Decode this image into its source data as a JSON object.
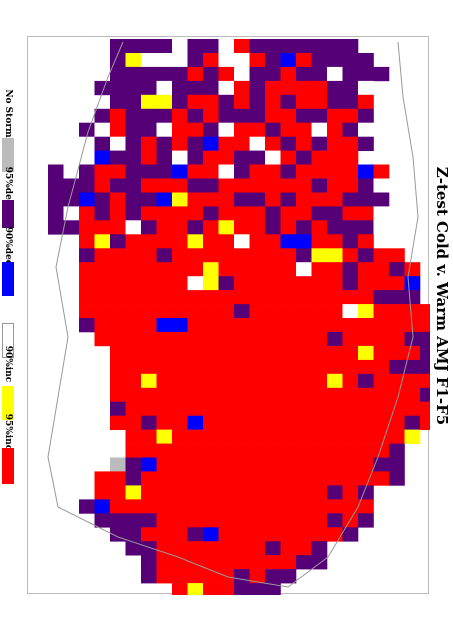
{
  "title": "Z-test Cold v. Warm AMJ F1-F5",
  "legend": {
    "items": [
      {
        "label": "No Storms",
        "color": "#bbbbbb"
      },
      {
        "label": "95%dec",
        "color": "#550077"
      },
      {
        "label": "90%dec",
        "color": "#0000ff"
      },
      {
        "label": "",
        "color": "#ffffff"
      },
      {
        "label": "90%inc",
        "color": "#ffff00"
      },
      {
        "label": "95%inc",
        "color": "#ff0000"
      }
    ]
  },
  "colors": {
    "P": "#550077",
    "R": "#ff0000",
    "B": "#0000ff",
    "Y": "#ffff00",
    "G": "#bbbbbb",
    "W": "#ffffff",
    "outline": "#999999",
    "grid": "#cccccc"
  },
  "map_grid": {
    "rows": [
      "....PPPPWPPWRPPPPPPP",
      "....PYWWWPRWWRPBRPPPP",
      "....PPPPPRPRWPPRPPWPPP",
      "...PPPPWPPPWRPRRRRPPW",
      "....PPYYPRRPRPRPRRPPR",
      "...PRPPPRPRPPPRRPPRRP",
      "..PWRPPWRRPWRRPRRWRPW",
      "..WPWPRPRPBRRWRPRPRRP",
      "..WBPPRPWPRRPPWRPRRR",
      "PWPRRPPPBRRWPRRPRRRRBR",
      "PPPRPPRRRPPRRRRRRPRRPW",
      "PPBPRPPBYRRRPPRPRRRPPP",
      "PWRPRPRRRRPRRRPRRPPRRW",
      "PPRRRWPRRPRYRRPRPRPPPW",
      "..RYPRRRRYRRWRRBBRRPR",
      "..PRRRRPRRRRRRRRPYYRPRR",
      "..RRRRRRRRYRRRRRWRRPRRPR",
      "..RRRRRRRWYPRRRRRRRPRRRB",
      "..RRRRRRRRRRRRRRRRRRRPPP",
      "..RRRRRRRRRRPRRRRRRWYRRRR",
      "..PRRRRBBRRRRRRRRRRRRRRRR",
      "...RRRRRRRRRRRRRRRPRRRRPP",
      "....RRRRRRRRRRRRRRRRYRRRP",
      "....RRRRRRRRRRRRRRRRRRPPP",
      "....RRYRRRRRRRRRRRYRPRRRRP",
      "....RRRRRRRRRRRRRRRRRRRRP",
      "....PRRRRRRRRRRRRRRRRRRRR",
      "....RRPRRBRRRRRRRRRRRRRPR",
      ".....RRYRRRRRRRRRRRRRRRY",
      ".....RRRRRRRRRRRRRRRRRP",
      "....GPBRRRRRRRRRRRRRRPP",
      "...RRPRRRRRRRRRRRRRRRRP",
      "...RRYRRRRRRRRRRRRPRP",
      "..PBRRRRRRRRRRRRRRRRR",
      "...PPPPRRRRRRRRRRRPRP",
      "....PPRRRPBRRRRRRRRP",
      ".....PPRRRRRRRPRRP",
      "......PRRRRRRRRRPP",
      "......PRRRRRPRPP",
      "........RYRRPPP"
    ]
  }
}
